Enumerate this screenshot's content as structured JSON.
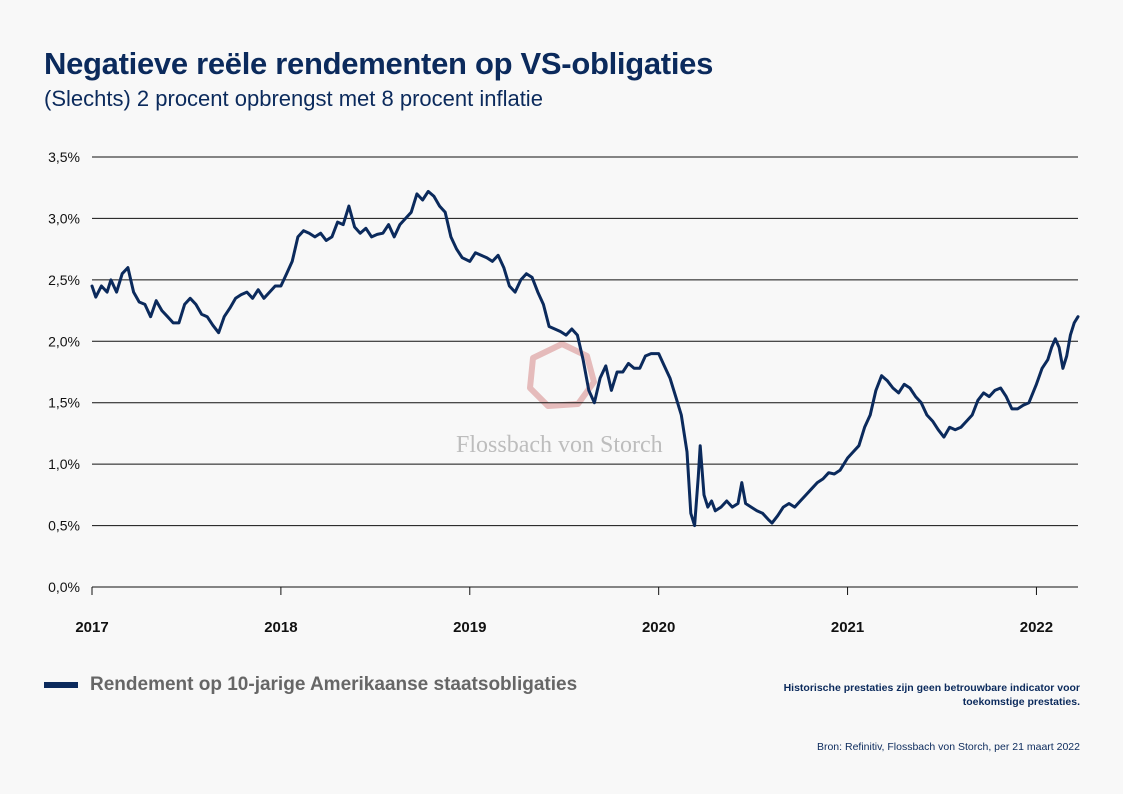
{
  "title": "Negatieve reële rendementen op VS-obligaties",
  "subtitle": "(Slechts) 2 procent opbrengst met 8 procent inflatie",
  "legend_label": "Rendement op 10-jarige Amerikaanse staatsobligaties",
  "disclaimer": "Historische prestaties zijn geen betrouwbare indicator voor toekomstige prestaties.",
  "source": "Bron: Refinitiv, Flossbach von Storch, per 21 maart 2022",
  "watermark": "Flossbach von Storch",
  "colors": {
    "line": "#0b2a5c",
    "text": "#0b2a5c",
    "grid": "#111111",
    "logo": "#e2b4b4"
  },
  "chart_data": {
    "type": "line",
    "title": "Negatieve reële rendementen op VS-obligaties",
    "xlabel": "",
    "ylabel": "",
    "xlim": [
      2017.0,
      2022.22
    ],
    "ylim": [
      0,
      3.5
    ],
    "y_ticks": [
      0,
      0.5,
      1.0,
      1.5,
      2.0,
      2.5,
      3.0,
      3.5
    ],
    "y_tick_labels": [
      "0,0%",
      "0,5%",
      "1,0%",
      "1,5%",
      "2,0%",
      "2,5%",
      "3,0%",
      "3,5%"
    ],
    "x_ticks": [
      2017,
      2018,
      2019,
      2020,
      2021,
      2022
    ],
    "x_tick_labels": [
      "2017",
      "2018",
      "2019",
      "2020",
      "2021",
      "2022"
    ],
    "grid": "horizontal",
    "legend_position": "bottom-left",
    "series": [
      {
        "name": "Rendement op 10-jarige Amerikaanse staatsobligaties",
        "points": [
          [
            2017.0,
            2.45
          ],
          [
            2017.02,
            2.36
          ],
          [
            2017.05,
            2.45
          ],
          [
            2017.08,
            2.4
          ],
          [
            2017.1,
            2.5
          ],
          [
            2017.13,
            2.4
          ],
          [
            2017.16,
            2.55
          ],
          [
            2017.19,
            2.6
          ],
          [
            2017.22,
            2.4
          ],
          [
            2017.25,
            2.32
          ],
          [
            2017.28,
            2.3
          ],
          [
            2017.31,
            2.2
          ],
          [
            2017.34,
            2.33
          ],
          [
            2017.37,
            2.25
          ],
          [
            2017.4,
            2.2
          ],
          [
            2017.43,
            2.15
          ],
          [
            2017.46,
            2.15
          ],
          [
            2017.49,
            2.3
          ],
          [
            2017.52,
            2.35
          ],
          [
            2017.55,
            2.3
          ],
          [
            2017.58,
            2.22
          ],
          [
            2017.61,
            2.2
          ],
          [
            2017.64,
            2.13
          ],
          [
            2017.67,
            2.07
          ],
          [
            2017.7,
            2.2
          ],
          [
            2017.73,
            2.27
          ],
          [
            2017.76,
            2.35
          ],
          [
            2017.79,
            2.38
          ],
          [
            2017.82,
            2.4
          ],
          [
            2017.85,
            2.35
          ],
          [
            2017.88,
            2.42
          ],
          [
            2017.91,
            2.35
          ],
          [
            2017.94,
            2.4
          ],
          [
            2017.97,
            2.45
          ],
          [
            2018.0,
            2.45
          ],
          [
            2018.03,
            2.55
          ],
          [
            2018.06,
            2.65
          ],
          [
            2018.09,
            2.85
          ],
          [
            2018.12,
            2.9
          ],
          [
            2018.15,
            2.88
          ],
          [
            2018.18,
            2.85
          ],
          [
            2018.21,
            2.88
          ],
          [
            2018.24,
            2.82
          ],
          [
            2018.27,
            2.85
          ],
          [
            2018.3,
            2.97
          ],
          [
            2018.33,
            2.95
          ],
          [
            2018.36,
            3.1
          ],
          [
            2018.39,
            2.93
          ],
          [
            2018.42,
            2.88
          ],
          [
            2018.45,
            2.92
          ],
          [
            2018.48,
            2.85
          ],
          [
            2018.51,
            2.87
          ],
          [
            2018.54,
            2.88
          ],
          [
            2018.57,
            2.95
          ],
          [
            2018.6,
            2.85
          ],
          [
            2018.63,
            2.95
          ],
          [
            2018.66,
            3.0
          ],
          [
            2018.69,
            3.05
          ],
          [
            2018.72,
            3.2
          ],
          [
            2018.75,
            3.15
          ],
          [
            2018.78,
            3.22
          ],
          [
            2018.81,
            3.18
          ],
          [
            2018.84,
            3.1
          ],
          [
            2018.87,
            3.05
          ],
          [
            2018.9,
            2.85
          ],
          [
            2018.93,
            2.75
          ],
          [
            2018.96,
            2.68
          ],
          [
            2019.0,
            2.65
          ],
          [
            2019.03,
            2.72
          ],
          [
            2019.06,
            2.7
          ],
          [
            2019.09,
            2.68
          ],
          [
            2019.12,
            2.65
          ],
          [
            2019.15,
            2.7
          ],
          [
            2019.18,
            2.6
          ],
          [
            2019.21,
            2.45
          ],
          [
            2019.24,
            2.4
          ],
          [
            2019.27,
            2.5
          ],
          [
            2019.3,
            2.55
          ],
          [
            2019.33,
            2.52
          ],
          [
            2019.36,
            2.4
          ],
          [
            2019.39,
            2.3
          ],
          [
            2019.42,
            2.12
          ],
          [
            2019.45,
            2.1
          ],
          [
            2019.48,
            2.08
          ],
          [
            2019.51,
            2.05
          ],
          [
            2019.54,
            2.1
          ],
          [
            2019.57,
            2.05
          ],
          [
            2019.6,
            1.85
          ],
          [
            2019.63,
            1.6
          ],
          [
            2019.66,
            1.5
          ],
          [
            2019.69,
            1.7
          ],
          [
            2019.72,
            1.8
          ],
          [
            2019.75,
            1.6
          ],
          [
            2019.78,
            1.75
          ],
          [
            2019.81,
            1.75
          ],
          [
            2019.84,
            1.82
          ],
          [
            2019.87,
            1.78
          ],
          [
            2019.9,
            1.78
          ],
          [
            2019.93,
            1.88
          ],
          [
            2019.96,
            1.9
          ],
          [
            2020.0,
            1.9
          ],
          [
            2020.03,
            1.8
          ],
          [
            2020.06,
            1.7
          ],
          [
            2020.09,
            1.55
          ],
          [
            2020.12,
            1.4
          ],
          [
            2020.15,
            1.1
          ],
          [
            2020.17,
            0.6
          ],
          [
            2020.19,
            0.5
          ],
          [
            2020.21,
            0.9
          ],
          [
            2020.22,
            1.15
          ],
          [
            2020.24,
            0.75
          ],
          [
            2020.26,
            0.65
          ],
          [
            2020.28,
            0.7
          ],
          [
            2020.3,
            0.62
          ],
          [
            2020.33,
            0.65
          ],
          [
            2020.36,
            0.7
          ],
          [
            2020.39,
            0.65
          ],
          [
            2020.42,
            0.68
          ],
          [
            2020.44,
            0.85
          ],
          [
            2020.46,
            0.68
          ],
          [
            2020.49,
            0.65
          ],
          [
            2020.52,
            0.62
          ],
          [
            2020.55,
            0.6
          ],
          [
            2020.58,
            0.55
          ],
          [
            2020.6,
            0.52
          ],
          [
            2020.63,
            0.58
          ],
          [
            2020.66,
            0.65
          ],
          [
            2020.69,
            0.68
          ],
          [
            2020.72,
            0.65
          ],
          [
            2020.75,
            0.7
          ],
          [
            2020.78,
            0.75
          ],
          [
            2020.81,
            0.8
          ],
          [
            2020.84,
            0.85
          ],
          [
            2020.87,
            0.88
          ],
          [
            2020.9,
            0.93
          ],
          [
            2020.93,
            0.92
          ],
          [
            2020.96,
            0.95
          ],
          [
            2021.0,
            1.05
          ],
          [
            2021.03,
            1.1
          ],
          [
            2021.06,
            1.15
          ],
          [
            2021.09,
            1.3
          ],
          [
            2021.12,
            1.4
          ],
          [
            2021.15,
            1.6
          ],
          [
            2021.18,
            1.72
          ],
          [
            2021.21,
            1.68
          ],
          [
            2021.24,
            1.62
          ],
          [
            2021.27,
            1.58
          ],
          [
            2021.3,
            1.65
          ],
          [
            2021.33,
            1.62
          ],
          [
            2021.36,
            1.55
          ],
          [
            2021.39,
            1.5
          ],
          [
            2021.42,
            1.4
          ],
          [
            2021.45,
            1.35
          ],
          [
            2021.48,
            1.28
          ],
          [
            2021.51,
            1.22
          ],
          [
            2021.54,
            1.3
          ],
          [
            2021.57,
            1.28
          ],
          [
            2021.6,
            1.3
          ],
          [
            2021.63,
            1.35
          ],
          [
            2021.66,
            1.4
          ],
          [
            2021.69,
            1.52
          ],
          [
            2021.72,
            1.58
          ],
          [
            2021.75,
            1.55
          ],
          [
            2021.78,
            1.6
          ],
          [
            2021.81,
            1.62
          ],
          [
            2021.84,
            1.55
          ],
          [
            2021.87,
            1.45
          ],
          [
            2021.9,
            1.45
          ],
          [
            2021.93,
            1.48
          ],
          [
            2021.96,
            1.5
          ],
          [
            2022.0,
            1.65
          ],
          [
            2022.03,
            1.78
          ],
          [
            2022.06,
            1.85
          ],
          [
            2022.08,
            1.95
          ],
          [
            2022.1,
            2.02
          ],
          [
            2022.12,
            1.95
          ],
          [
            2022.14,
            1.78
          ],
          [
            2022.16,
            1.88
          ],
          [
            2022.18,
            2.05
          ],
          [
            2022.2,
            2.15
          ],
          [
            2022.22,
            2.2
          ]
        ]
      }
    ]
  }
}
